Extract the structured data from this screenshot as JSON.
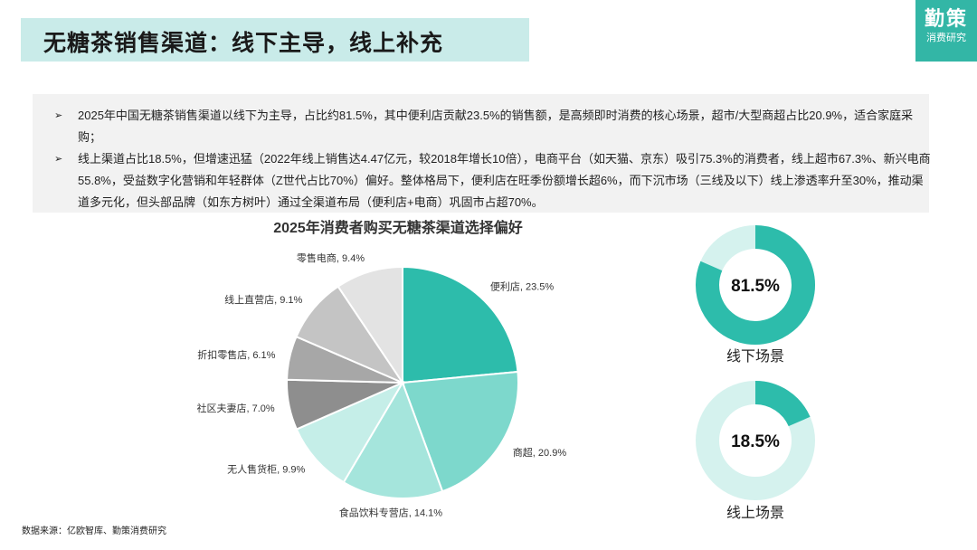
{
  "header": {
    "title": "无糖茶销售渠道：线下主导，线上补充"
  },
  "logo": {
    "main": "勤策",
    "sub": "消费研究"
  },
  "summary": {
    "marker": "➢",
    "bullets": [
      "2025年中国无糖茶销售渠道以线下为主导，占比约81.5%，其中便利店贡献23.5%的销售额，是高频即时消费的核心场景，超市/大型商超占比20.9%，适合家庭采购；",
      "线上渠道占比18.5%，但增速迅猛（2022年线上销售达4.47亿元，较2018年增长10倍），电商平台（如天猫、京东）吸引75.3%的消费者，线上超市67.3%、新兴电商55.8%，受益数字化营销和年轻群体（Z世代占比70%）偏好。整体格局下，便利店在旺季份额增长超6%，而下沉市场（三线及以下）线上渗透率升至30%，推动渠道多元化，但头部品牌（如东方树叶）通过全渠道布局（便利店+电商）巩固市占超70%。"
    ]
  },
  "chart_data": [
    {
      "type": "pie",
      "title": "2025年消费者购买无糖茶渠道选择偏好",
      "slices": [
        {
          "label": "便利店",
          "value": 23.5,
          "display": "便利店, 23.5%",
          "color": "#2dbcab"
        },
        {
          "label": "商超",
          "value": 20.9,
          "display": "商超, 20.9%",
          "color": "#7dd8cc"
        },
        {
          "label": "食品饮料专营店",
          "value": 14.1,
          "display": "食品饮料专营店, 14.1%",
          "color": "#a5e5dc"
        },
        {
          "label": "无人售货柜",
          "value": 9.9,
          "display": "无人售货柜, 9.9%",
          "color": "#c5eee8"
        },
        {
          "label": "社区夫妻店",
          "value": 7.0,
          "display": "社区夫妻店, 7.0%",
          "color": "#8e8e8e"
        },
        {
          "label": "折扣零售店",
          "value": 6.1,
          "display": "折扣零售店, 6.1%",
          "color": "#a7a7a7"
        },
        {
          "label": "线上直营店",
          "value": 9.1,
          "display": "线上直营店, 9.1%",
          "color": "#c4c4c4"
        },
        {
          "label": "零售电商",
          "value": 9.4,
          "display": "零售电商, 9.4%",
          "color": "#e3e3e3"
        }
      ]
    },
    {
      "type": "pie",
      "value": 81.5,
      "value_label": "81.5%",
      "label": "线下场景",
      "color": "#2dbcab",
      "track_color": "#d5f2ee"
    },
    {
      "type": "pie",
      "value": 18.5,
      "value_label": "18.5%",
      "label": "线上场景",
      "color": "#2dbcab",
      "track_color": "#d5f2ee"
    }
  ],
  "footer": {
    "source": "数据来源：亿欧智库、勤策消费研究"
  }
}
